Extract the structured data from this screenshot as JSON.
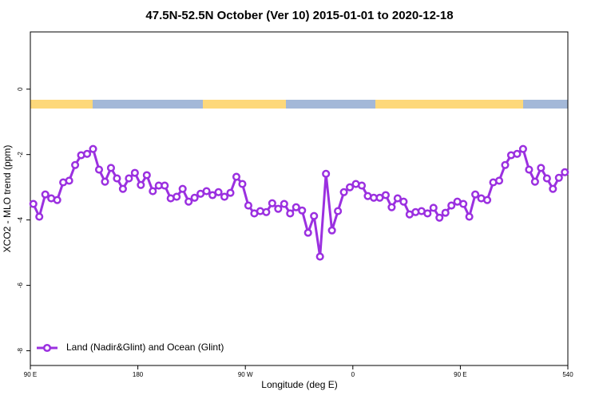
{
  "chart_data": {
    "type": "line",
    "title": "47.5N-52.5N October (Ver 10)   2015-01-01 to 2020-12-18",
    "x_label": "Longitude (deg E)",
    "y_label": "XCO2 - MLO trend (ppm)",
    "x": [
      92.5,
      97.5,
      102.5,
      107.5,
      112.5,
      117.5,
      122.5,
      127.5,
      132.5,
      137.5,
      142.5,
      147.5,
      152.5,
      157.5,
      162.5,
      167.5,
      172.5,
      177.5,
      182.5,
      187.5,
      192.5,
      197.5,
      202.5,
      207.5,
      212.5,
      217.5,
      222.5,
      227.5,
      232.5,
      237.5,
      242.5,
      247.5,
      252.5,
      257.5,
      262.5,
      267.5,
      272.5,
      277.5,
      282.5,
      287.5,
      292.5,
      297.5,
      302.5,
      307.5,
      312.5,
      317.5,
      322.5,
      327.5,
      332.5,
      337.5,
      342.5,
      347.5,
      352.5,
      357.5,
      362.5,
      367.5,
      372.5,
      377.5,
      382.5,
      387.5,
      392.5,
      397.5,
      402.5,
      407.5,
      412.5,
      417.5,
      422.5,
      427.5,
      432.5,
      437.5,
      442.5,
      447.5,
      452.5,
      457.5,
      462.5,
      467.5,
      472.5,
      477.5,
      482.5,
      487.5,
      492.5,
      497.5,
      502.5,
      507.5,
      512.5,
      517.5,
      522.5,
      527.5,
      532.5,
      537.5
    ],
    "series": [
      {
        "name": "Land (Nadir&Glint) and Ocean (Glint)",
        "color": "#9b30e0",
        "values": [
          -3.51,
          -3.9,
          -3.22,
          -3.34,
          -3.39,
          -2.85,
          -2.8,
          -2.32,
          -2.02,
          -1.98,
          -1.83,
          -2.46,
          -2.83,
          -2.41,
          -2.73,
          -3.05,
          -2.73,
          -2.56,
          -2.93,
          -2.63,
          -3.12,
          -2.95,
          -2.95,
          -3.34,
          -3.29,
          -3.05,
          -3.44,
          -3.32,
          -3.2,
          -3.12,
          -3.24,
          -3.15,
          -3.29,
          -3.17,
          -2.68,
          -2.9,
          -3.56,
          -3.8,
          -3.73,
          -3.76,
          -3.49,
          -3.66,
          -3.51,
          -3.8,
          -3.61,
          -3.71,
          -4.39,
          -3.88,
          -5.12,
          -2.59,
          -4.32,
          -3.73,
          -3.15,
          -3.0,
          -2.9,
          -2.95,
          -3.27,
          -3.32,
          -3.32,
          -3.24,
          -3.61,
          -3.34,
          -3.44,
          -3.83,
          -3.76,
          -3.73,
          -3.8,
          -3.63,
          -3.93,
          -3.78,
          -3.56,
          -3.44,
          -3.51,
          -3.9,
          -3.22,
          -3.34,
          -3.39,
          -2.85,
          -2.8,
          -2.32,
          -2.02,
          -1.98,
          -1.83,
          -2.46,
          -2.83,
          -2.41,
          -2.73,
          -3.05,
          -2.71,
          -2.54
        ]
      }
    ],
    "xlim": [
      90,
      540
    ],
    "xticks": [
      {
        "value": 90,
        "label": "90 E"
      },
      180,
      {
        "value": 270,
        "label": "90 W"
      },
      {
        "value": 360,
        "label": "0"
      },
      {
        "value": 450,
        "label": "90 E"
      },
      540
    ],
    "ylim": [
      -8.45,
      1.75
    ],
    "yticks": [
      0,
      -2,
      -4,
      -6,
      -8
    ],
    "legend": "bottom-left"
  }
}
